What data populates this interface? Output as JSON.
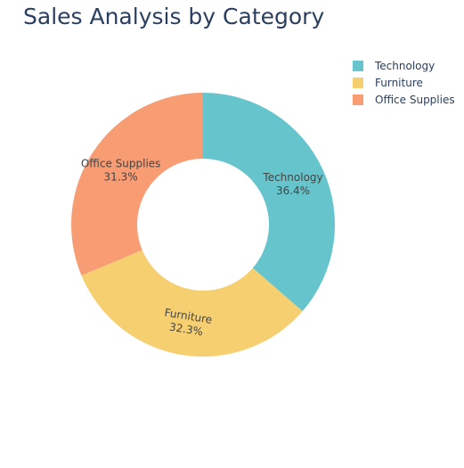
{
  "chart_data": {
    "type": "pie",
    "title": "Sales Analysis by Category",
    "hole": true,
    "categories": [
      "Technology",
      "Furniture",
      "Office Supplies"
    ],
    "values": [
      36.4,
      32.3,
      31.3
    ],
    "percent_labels": [
      "36.4%",
      "32.3%",
      "31.3%"
    ],
    "colors": [
      "#66c5cc",
      "#f6cf71",
      "#f89c74"
    ],
    "legend_position": "top-right"
  },
  "legend": {
    "items": [
      {
        "label": "Technology",
        "color": "#66c5cc"
      },
      {
        "label": "Furniture",
        "color": "#f6cf71"
      },
      {
        "label": "Office Supplies",
        "color": "#f89c74"
      }
    ]
  }
}
